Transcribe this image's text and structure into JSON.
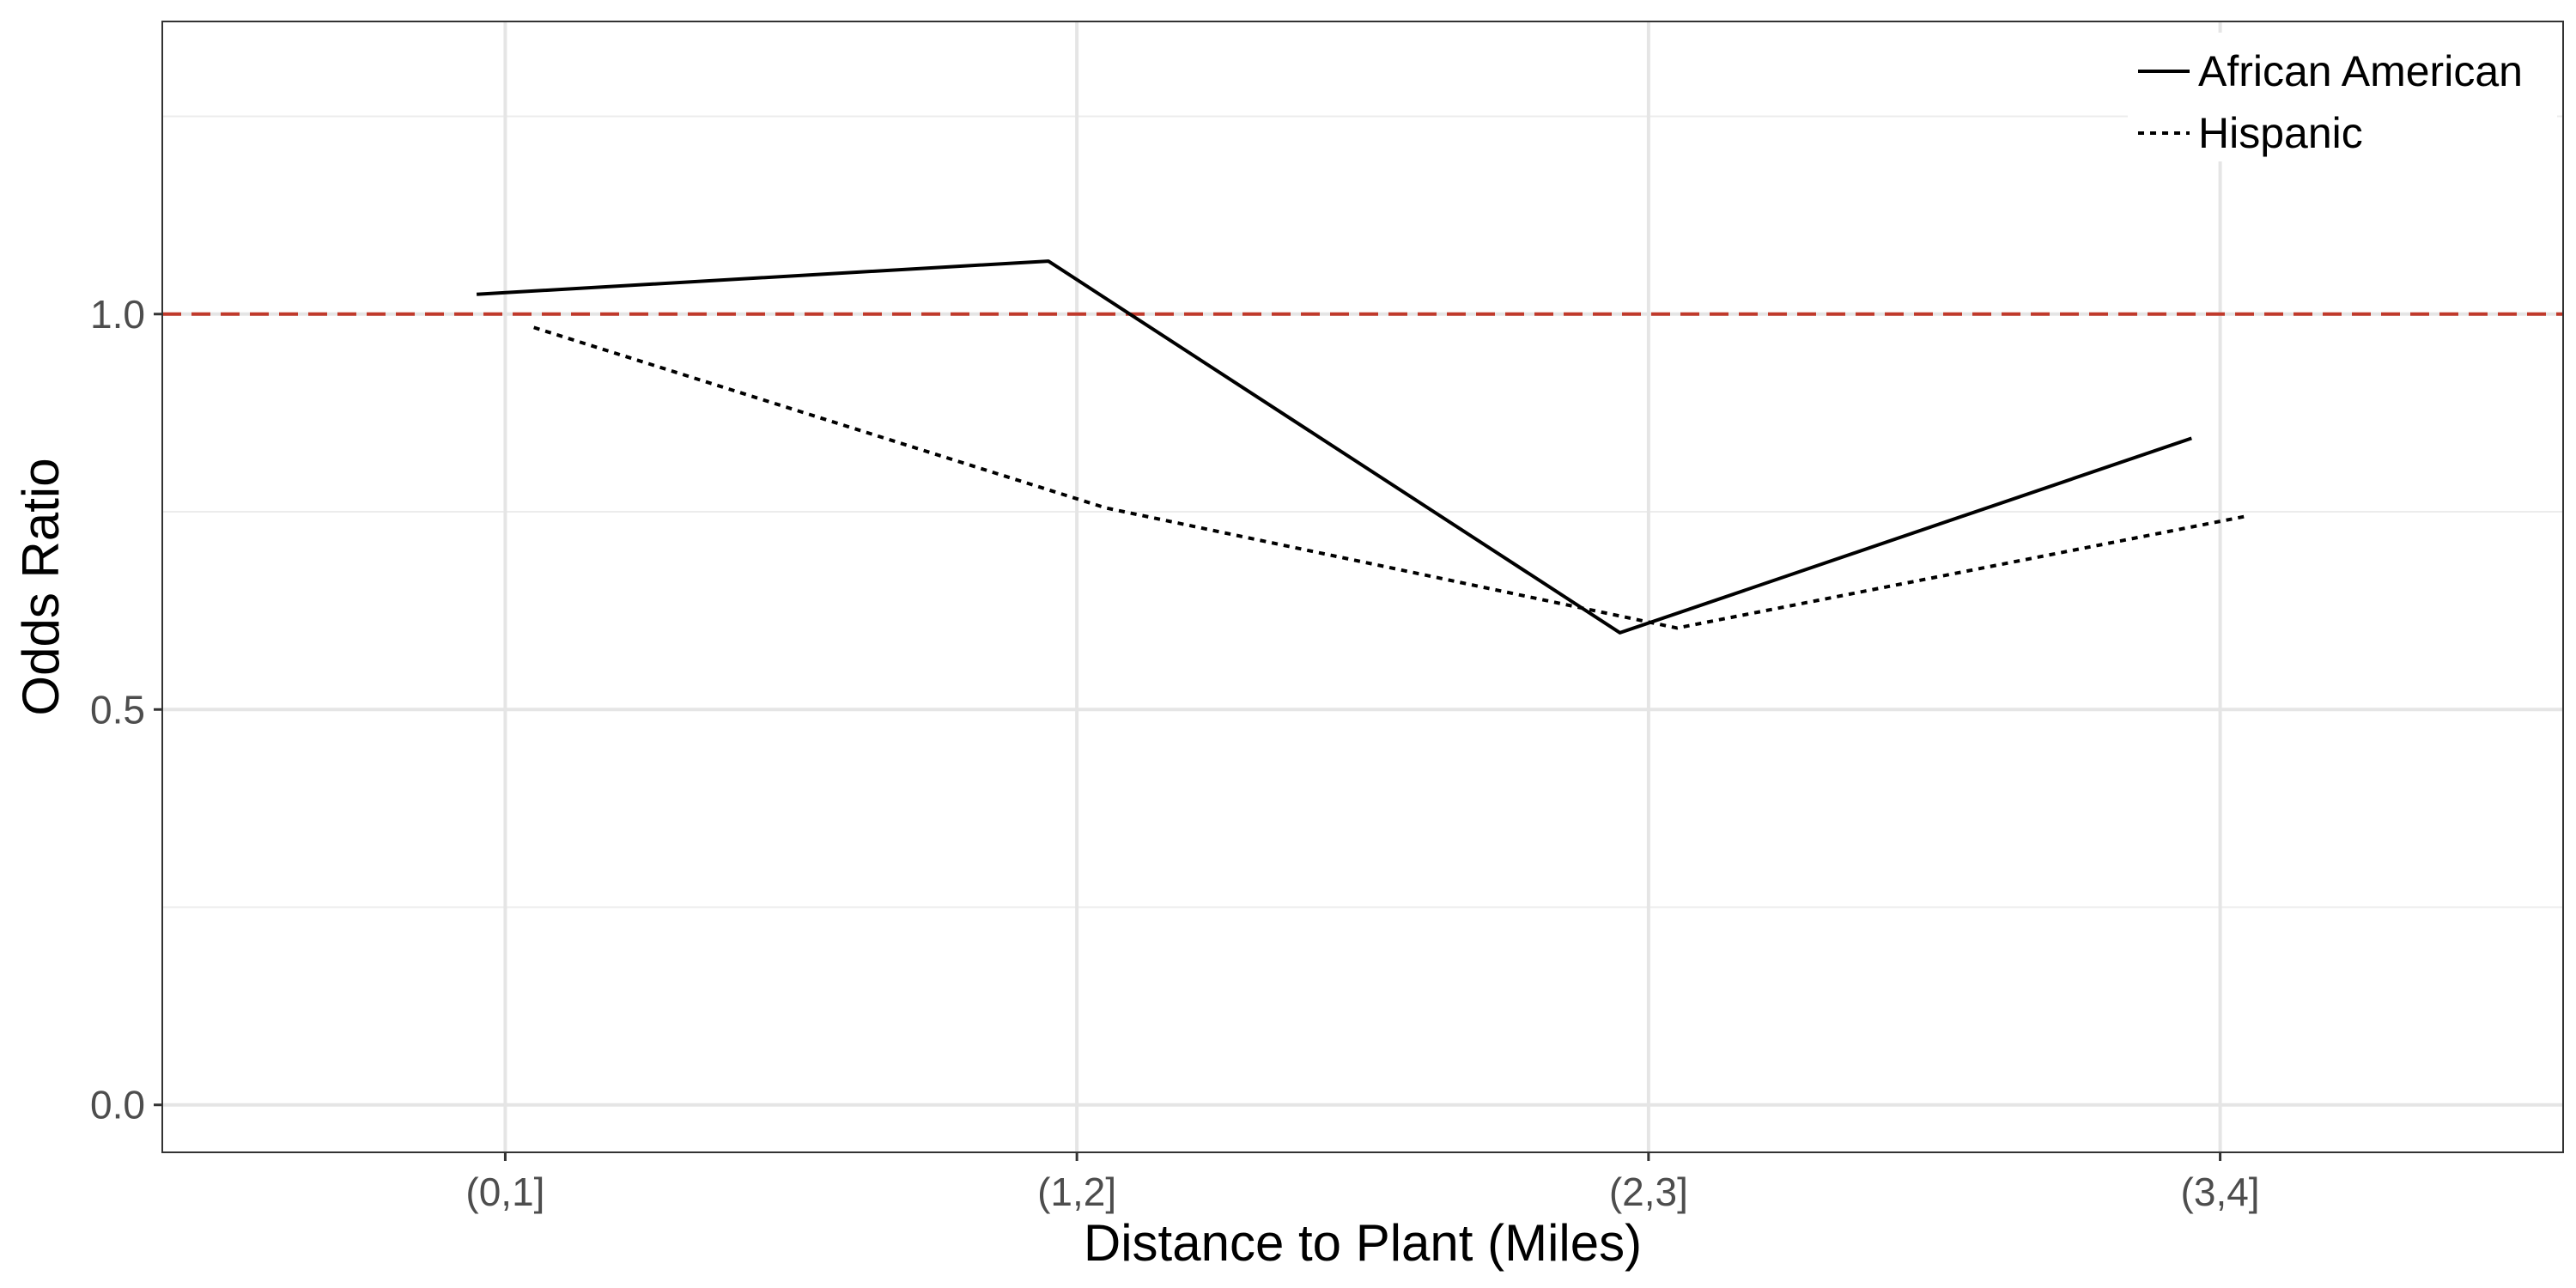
{
  "chart_data": {
    "type": "line",
    "title": "",
    "xlabel": "Distance to Plant (Miles)",
    "ylabel": "Odds Ratio",
    "categories": [
      "(0,1]",
      "(1,2]",
      "(2,3]",
      "(3,4]"
    ],
    "y_ticks": [
      "0.0",
      "0.5",
      "1.0"
    ],
    "ylim": [
      -0.06,
      1.37
    ],
    "grid": true,
    "legend_position": "top-right",
    "series": [
      {
        "name": "African American",
        "line_style": "solid",
        "x_offset": -0.05,
        "values": [
          1.025,
          1.067,
          0.597,
          0.843
        ]
      },
      {
        "name": "Hispanic",
        "line_style": "dotted",
        "x_offset": 0.05,
        "values": [
          0.983,
          0.755,
          0.603,
          0.745
        ]
      }
    ],
    "reference_line": {
      "y": 1.0,
      "color": "#c0392b",
      "style": "dashed"
    }
  }
}
